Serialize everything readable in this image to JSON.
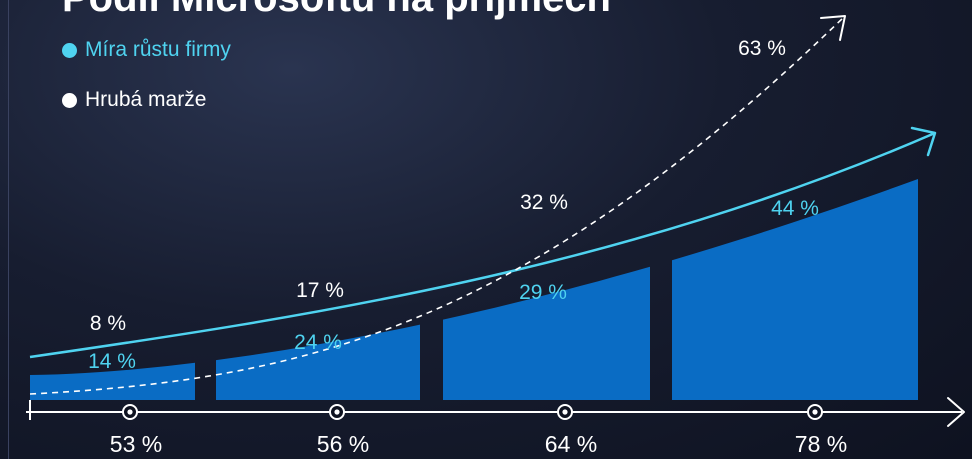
{
  "title": "Podíl Microsoftu na příjmech",
  "legend": {
    "growth_label": "Míra růstu firmy",
    "margin_label": "Hrubá marže"
  },
  "colors": {
    "bar": "#0a6cc4",
    "growth": "#4fd3f0",
    "margin": "#ffffff",
    "axis": "#ffffff"
  },
  "chart_data": {
    "type": "bar",
    "categories": [
      "53 %",
      "56 %",
      "64 %",
      "78 %"
    ],
    "series": [
      {
        "name": "Míra růstu firmy",
        "values": [
          14,
          24,
          29,
          44
        ],
        "labels": [
          "14 %",
          "24 %",
          "29 %",
          "44 %"
        ]
      },
      {
        "name": "Hrubá marže",
        "values": [
          8,
          17,
          32,
          63
        ],
        "labels": [
          "8 %",
          "17 %",
          "32 %",
          "63 %"
        ]
      }
    ]
  }
}
